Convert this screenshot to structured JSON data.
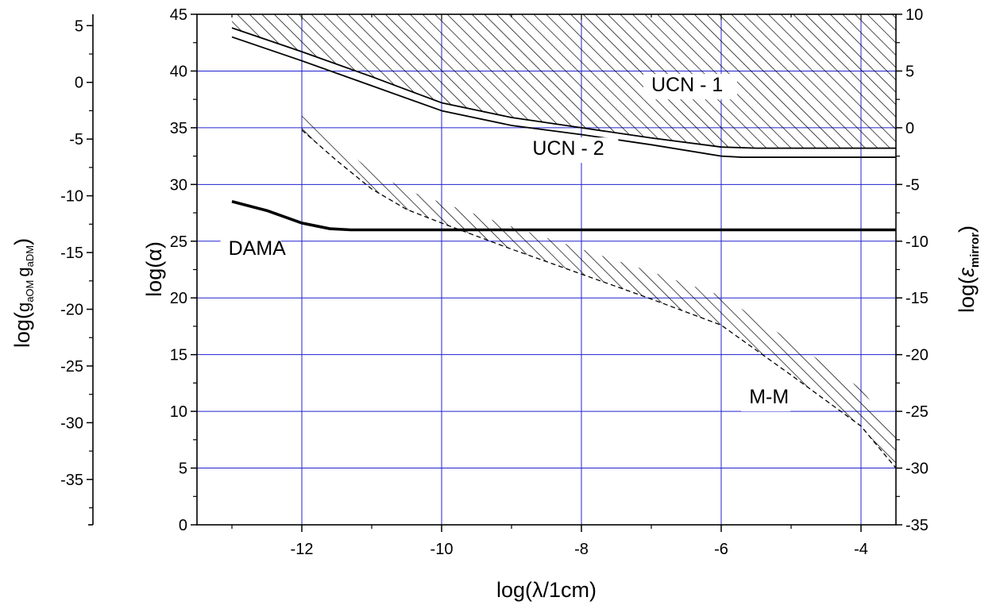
{
  "chart_data": {
    "type": "line",
    "xlabel": "log(λ/1cm)",
    "ylabel": "log(α)",
    "ylabel_left_outer": {
      "prefix": "log(",
      "g1": "g",
      "g1_sub": "aOM",
      "g2": "g",
      "g2_sub": "aDM",
      "suffix": ")"
    },
    "ylabel_right": {
      "prefix": "log(",
      "symbol": "ε",
      "sub": "mirror",
      "suffix": ")"
    },
    "xlim": [
      -13.5,
      -3.5
    ],
    "ylim": [
      0,
      45
    ],
    "outer_left_ylim": [
      -39,
      6
    ],
    "right_ylim": [
      -35,
      10
    ],
    "grid": true,
    "grid_color": "#2020d0",
    "x_ticks": [
      -12,
      -10,
      -8,
      -6,
      -4
    ],
    "y_ticks": [
      0,
      5,
      10,
      15,
      20,
      25,
      30,
      35,
      40,
      45
    ],
    "outer_left_ticks": [
      5,
      0,
      -5,
      -10,
      -15,
      -20,
      -25,
      -30,
      -35
    ],
    "right_ticks": [
      10,
      5,
      0,
      -5,
      -10,
      -15,
      -20,
      -25,
      -30,
      -35
    ],
    "series": [
      {
        "name": "UCN - 1",
        "style": "solid",
        "hatched_above": true,
        "x": [
          -13.0,
          -12.0,
          -11.0,
          -10.0,
          -9.0,
          -8.0,
          -7.0,
          -6.0,
          -5.5,
          -4.5,
          -3.5
        ],
        "y": [
          43.8,
          41.7,
          39.5,
          37.2,
          35.9,
          35.0,
          34.1,
          33.3,
          33.2,
          33.2,
          33.2
        ]
      },
      {
        "name": "UCN - 2",
        "style": "solid",
        "x": [
          -13.0,
          -12.0,
          -11.0,
          -10.0,
          -9.0,
          -8.0,
          -7.0,
          -6.0,
          -5.7,
          -4.5,
          -3.5
        ],
        "y": [
          43.0,
          40.9,
          38.7,
          36.5,
          35.2,
          34.4,
          33.5,
          32.5,
          32.4,
          32.4,
          32.4
        ]
      },
      {
        "name": "DAMA",
        "style": "bold",
        "x": [
          -13.0,
          -12.5,
          -12.0,
          -11.6,
          -11.3,
          -10.0,
          -3.5
        ],
        "y": [
          28.5,
          27.7,
          26.6,
          26.1,
          26.0,
          26.0,
          26.0
        ]
      },
      {
        "name": "M-M",
        "style": "dashed",
        "hatched_above": true,
        "x": [
          -12.0,
          -11.5,
          -11.0,
          -10.5,
          -10.0,
          -9.0,
          -8.0,
          -7.0,
          -6.0,
          -5.0,
          -4.0,
          -3.5
        ],
        "y": [
          34.8,
          32.1,
          29.6,
          27.8,
          26.6,
          24.3,
          22.1,
          19.9,
          17.6,
          13.2,
          8.7,
          5.0
        ],
        "hatch_upper_y": [
          36.2,
          33.6,
          31.2,
          29.5,
          28.4,
          26.3,
          24.3,
          22.3,
          20.2,
          16.2,
          12.0,
          8.0
        ]
      }
    ],
    "annotations": [
      {
        "text": "UCN - 1",
        "x": -7.0,
        "y": 38.2
      },
      {
        "text": "UCN - 2",
        "x": -8.7,
        "y": 32.6
      },
      {
        "text": "DAMA",
        "x": -13.05,
        "y": 23.8
      },
      {
        "text": "M-M",
        "x": -5.6,
        "y": 10.7
      }
    ]
  }
}
